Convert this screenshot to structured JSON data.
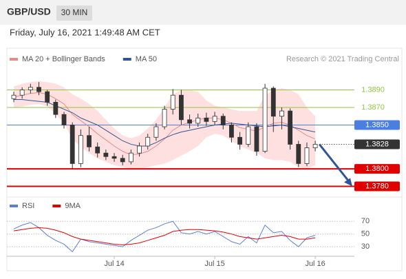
{
  "header": {
    "symbol": "GBP/USD",
    "interval": "30 MIN",
    "timestamp": "Friday, July 16, 2021 1:49:48 AM CET"
  },
  "chart_data": [
    {
      "type": "candlestick",
      "credit": "Research © 2021 Trading Central",
      "open": [
        1.388,
        1.3884,
        1.389,
        1.3893,
        1.3888,
        1.3876,
        1.3862,
        1.385,
        1.3806,
        1.3838,
        1.3825,
        1.3818,
        1.3814,
        1.3812,
        1.3808,
        1.3818,
        1.3826,
        1.3836,
        1.3848,
        1.3868,
        1.3884,
        1.3856,
        1.3852,
        1.3858,
        1.3854,
        1.386,
        1.385,
        1.3836,
        1.3828,
        1.3848,
        1.382,
        1.3892,
        1.386,
        1.3866,
        1.3828,
        1.3806,
        1.3824
      ],
      "high": [
        1.3888,
        1.3893,
        1.3897,
        1.3899,
        1.389,
        1.3879,
        1.3865,
        1.3853,
        1.3845,
        1.3848,
        1.383,
        1.3822,
        1.3818,
        1.3816,
        1.3822,
        1.383,
        1.384,
        1.3852,
        1.3872,
        1.3891,
        1.389,
        1.3862,
        1.3863,
        1.3864,
        1.3865,
        1.3863,
        1.3853,
        1.3842,
        1.3853,
        1.3852,
        1.3897,
        1.3894,
        1.387,
        1.3869,
        1.3832,
        1.383,
        1.3832
      ],
      "low": [
        1.3876,
        1.388,
        1.3886,
        1.3884,
        1.3872,
        1.3858,
        1.3846,
        1.38,
        1.3802,
        1.382,
        1.3813,
        1.381,
        1.3808,
        1.3804,
        1.3805,
        1.3814,
        1.3822,
        1.3832,
        1.3845,
        1.3862,
        1.385,
        1.3846,
        1.3848,
        1.3849,
        1.385,
        1.3845,
        1.383,
        1.3822,
        1.3825,
        1.3815,
        1.3818,
        1.3842,
        1.3845,
        1.3822,
        1.3802,
        1.3803,
        1.382
      ],
      "close": [
        1.3884,
        1.389,
        1.3893,
        1.3888,
        1.3876,
        1.3862,
        1.385,
        1.3806,
        1.3838,
        1.3825,
        1.3818,
        1.3814,
        1.3812,
        1.3808,
        1.3818,
        1.3826,
        1.3836,
        1.3848,
        1.3868,
        1.3884,
        1.3856,
        1.3852,
        1.3858,
        1.3854,
        1.386,
        1.385,
        1.3836,
        1.3828,
        1.3848,
        1.382,
        1.3892,
        1.386,
        1.3866,
        1.3828,
        1.3806,
        1.3824,
        1.3828
      ],
      "up_color": "#ffffff",
      "down_color": "#333333",
      "series": [
        {
          "name": "MA 20 + Bollinger Bands",
          "color": "#e88a8a",
          "band_color": "#fde0df",
          "values": [
            1.3882,
            1.3884,
            1.3886,
            1.3887,
            1.3885,
            1.388,
            1.3874,
            1.3862,
            1.3855,
            1.3848,
            1.384,
            1.3833,
            1.3826,
            1.382,
            1.3816,
            1.3817,
            1.382,
            1.3826,
            1.3834,
            1.3844,
            1.385,
            1.3853,
            1.3856,
            1.3858,
            1.3858,
            1.3856,
            1.3852,
            1.3847,
            1.3845,
            1.3843,
            1.3848,
            1.3852,
            1.3853,
            1.385,
            1.3844,
            1.3838,
            1.3834
          ],
          "upper": [
            1.3894,
            1.3897,
            1.3899,
            1.39,
            1.3899,
            1.3897,
            1.3893,
            1.3885,
            1.388,
            1.3874,
            1.3866,
            1.3856,
            1.3846,
            1.3838,
            1.3835,
            1.3838,
            1.3846,
            1.3856,
            1.387,
            1.3885,
            1.389,
            1.389,
            1.3888,
            1.3878,
            1.3872,
            1.387,
            1.3868,
            1.3866,
            1.3866,
            1.3866,
            1.3884,
            1.389,
            1.3892,
            1.389,
            1.3885,
            1.387,
            1.386
          ],
          "lower": [
            1.387,
            1.3871,
            1.3873,
            1.3874,
            1.3871,
            1.3863,
            1.3852,
            1.3834,
            1.3825,
            1.3818,
            1.3812,
            1.3808,
            1.3804,
            1.3802,
            1.38,
            1.38,
            1.3802,
            1.3804,
            1.3806,
            1.381,
            1.3815,
            1.382,
            1.3826,
            1.3836,
            1.384,
            1.3838,
            1.3832,
            1.3826,
            1.3822,
            1.3818,
            1.3812,
            1.381,
            1.381,
            1.3808,
            1.3802,
            1.38,
            1.3804
          ]
        },
        {
          "name": "MA 50",
          "color": "#2f5597",
          "values": [
            1.3879,
            1.3879,
            1.3878,
            1.3877,
            1.3876,
            1.3872,
            1.3868,
            1.3864,
            1.3858,
            1.3854,
            1.385,
            1.3844,
            1.3838,
            1.3832,
            1.3828,
            1.3826,
            1.3826,
            1.383,
            1.3835,
            1.3839,
            1.3842,
            1.3844,
            1.3846,
            1.3848,
            1.385,
            1.3851,
            1.3852,
            1.3851,
            1.385,
            1.3849,
            1.3848,
            1.3849,
            1.385,
            1.3848,
            1.3846,
            1.3844,
            1.3842
          ]
        }
      ],
      "levels": [
        {
          "value": 1.389,
          "label": "1.3890",
          "color": "#8dc63f",
          "style": "text"
        },
        {
          "value": 1.387,
          "label": "1.3870",
          "color": "#8dc63f",
          "style": "text"
        },
        {
          "value": 1.385,
          "label": "1.3850",
          "color": "#4a7fe0",
          "style": "box"
        },
        {
          "value": 1.3828,
          "label": "1.3828",
          "color": "#333333",
          "style": "box",
          "dotted": true
        },
        {
          "value": 1.38,
          "label": "1.3800",
          "color": "#e00000",
          "style": "box"
        },
        {
          "value": 1.378,
          "label": "1.3780",
          "color": "#e00000",
          "style": "box"
        }
      ],
      "ylim": [
        1.3771,
        1.3914
      ]
    },
    {
      "type": "line",
      "categories": [
        null,
        null,
        null,
        null,
        null,
        null,
        null,
        null,
        null,
        null,
        null,
        null,
        "Jul 14",
        null,
        null,
        null,
        null,
        null,
        null,
        null,
        null,
        null,
        null,
        null,
        "Jul 15",
        null,
        null,
        null,
        null,
        null,
        null,
        null,
        null,
        null,
        null,
        null,
        "Jul 16"
      ],
      "series": [
        {
          "name": "RSI",
          "color": "#5b7fd6",
          "values": [
            58,
            64,
            68,
            60,
            48,
            40,
            34,
            22,
            42,
            38,
            36,
            34,
            32,
            30,
            40,
            48,
            56,
            60,
            66,
            70,
            52,
            50,
            54,
            50,
            54,
            46,
            38,
            34,
            46,
            36,
            64,
            52,
            54,
            40,
            30,
            44,
            48
          ]
        },
        {
          "name": "9MA",
          "color": "#e00000",
          "values": [
            55,
            57,
            59,
            60,
            59,
            56,
            52,
            46,
            42,
            40,
            38,
            36,
            34,
            33,
            34,
            36,
            40,
            44,
            48,
            54,
            56,
            57,
            57,
            56,
            55,
            53,
            50,
            46,
            44,
            42,
            44,
            46,
            48,
            46,
            42,
            42,
            44
          ]
        }
      ],
      "ylim": [
        15,
        80
      ],
      "yticks": [
        70,
        50,
        30
      ],
      "grid": true
    }
  ]
}
